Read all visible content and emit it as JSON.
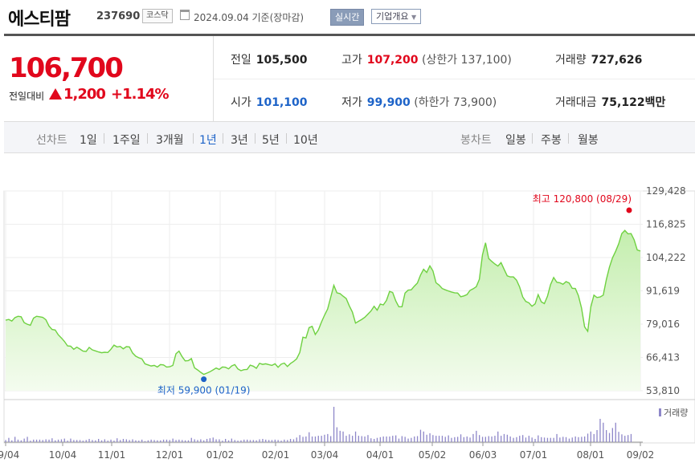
{
  "header": {
    "name": "에스티팜",
    "code": "237690",
    "market": "코스닥",
    "as_of": "2024.09.04 기준(장마감)",
    "realtime_label": "실시간",
    "company_overview_label": "기업개요"
  },
  "quote": {
    "price": "106,700",
    "change_label": "전일대비",
    "change": "1,200",
    "change_pct": "+1.14%"
  },
  "summary": {
    "prev_close_label": "전일",
    "prev_close": "105,500",
    "high_label": "고가",
    "high": "107,200",
    "upper_limit": "(상한가 137,100)",
    "volume_label": "거래량",
    "volume": "727,626",
    "open_label": "시가",
    "open": "101,100",
    "low_label": "저가",
    "low": "99,900",
    "lower_limit": "(하한가 73,900)",
    "trade_value_label": "거래대금",
    "trade_value": "75,122",
    "trade_value_unit": "백만"
  },
  "periods": {
    "line_label": "선차트",
    "line_items": [
      "1일",
      "1주일",
      "3개월",
      "1년",
      "3년",
      "5년",
      "10년"
    ],
    "selected": "1년",
    "candle_label": "봉차트",
    "candle_items": [
      "일봉",
      "주봉",
      "월봉"
    ]
  },
  "colors": {
    "up": "#e1071c",
    "down": "#1d63c8",
    "line": "#6fd141",
    "fill": "#d9f5c9",
    "volume": "#8e87c9"
  },
  "chart_data": {
    "type": "area",
    "x_tick_labels": [
      "09/04",
      "10/04",
      "11/01",
      "12/01",
      "01/02",
      "02/01",
      "03/04",
      "04/01",
      "05/02",
      "06/03",
      "07/01",
      "08/01",
      "09/02"
    ],
    "y_tick_labels": [
      "129,428",
      "116,825",
      "104,222",
      "91,619",
      "79,016",
      "66,413",
      "53,810"
    ],
    "ylim": [
      53810,
      129428
    ],
    "grid": true,
    "max_label": "최고 120,800 (08/29)",
    "min_label": "최저 59,900 (01/19)",
    "volume_legend": "거래량",
    "series": [
      {
        "name": "종가",
        "values": [
          80500,
          80800,
          80200,
          81500,
          82000,
          81800,
          79600,
          79000,
          78600,
          81300,
          82000,
          81800,
          81600,
          80700,
          78300,
          77000,
          76800,
          75000,
          73800,
          72500,
          70800,
          70700,
          69500,
          70300,
          69600,
          68800,
          68700,
          70200,
          69300,
          68900,
          68500,
          68200,
          68400,
          68300,
          69500,
          71100,
          70400,
          70600,
          69700,
          70500,
          70400,
          68100,
          66900,
          66300,
          65900,
          64000,
          63600,
          63200,
          63400,
          62800,
          63700,
          63600,
          62800,
          62900,
          63400,
          67800,
          68800,
          66700,
          65100,
          65200,
          66000,
          62500,
          61700,
          60800,
          60000,
          60500,
          61000,
          61700,
          62400,
          61900,
          62800,
          62700,
          62100,
          63200,
          63700,
          62100,
          61400,
          61800,
          61900,
          63500,
          63100,
          62300,
          64200,
          63800,
          64000,
          63700,
          63400,
          64000,
          62700,
          63900,
          64300,
          63000,
          64100,
          64900,
          65900,
          68300,
          74100,
          73800,
          77700,
          78200,
          75100,
          76800,
          79800,
          82400,
          84800,
          89200,
          93700,
          90900,
          90600,
          89600,
          88700,
          85900,
          83600,
          79400,
          80100,
          80800,
          81600,
          82800,
          84000,
          85800,
          84300,
          86600,
          86300,
          88000,
          91400,
          91000,
          87800,
          85600,
          85600,
          90800,
          91900,
          92000,
          93400,
          94600,
          97600,
          99800,
          98600,
          101100,
          99200,
          94700,
          93800,
          92500,
          92000,
          91600,
          91200,
          90900,
          90800,
          89400,
          89700,
          90200,
          91800,
          92400,
          93200,
          96000,
          105300,
          109800,
          103900,
          102800,
          101800,
          101000,
          102300,
          99800,
          97300,
          96900,
          96900,
          95700,
          93100,
          89300,
          87600,
          87100,
          85800,
          86700,
          90200,
          87500,
          86800,
          89600,
          94000,
          96700,
          94900,
          94700,
          94100,
          95100,
          94600,
          92600,
          92500,
          89800,
          85100,
          78000,
          76300,
          85500,
          90000,
          89100,
          89300,
          90000,
          95800,
          100600,
          104100,
          106600,
          109400,
          113300,
          114500,
          113200,
          113300,
          110900,
          107100,
          106700
        ]
      },
      {
        "name": "거래량",
        "values": [
          0.06,
          0.12,
          0.05,
          0.15,
          0.07,
          0.05,
          0.1,
          0.15,
          0.04,
          0.07,
          0.07,
          0.07,
          0.06,
          0.08,
          0.07,
          0.11,
          0.05,
          0.07,
          0.08,
          0.1,
          0.04,
          0.1,
          0.06,
          0.06,
          0.06,
          0.04,
          0.06,
          0.09,
          0.06,
          0.05,
          0.09,
          0.05,
          0.08,
          0.04,
          0.07,
          0.04,
          0.11,
          0.06,
          0.09,
          0.08,
          0.06,
          0.08,
          0.05,
          0.04,
          0.07,
          0.03,
          0.05,
          0.07,
          0.06,
          0.05,
          0.05,
          0.07,
          0.07,
          0.06,
          0.1,
          0.06,
          0.07,
          0.06,
          0.05,
          0.05,
          0.12,
          0.08,
          0.06,
          0.08,
          0.05,
          0.09,
          0.11,
          0.13,
          0.08,
          0.08,
          0.04,
          0.09,
          0.05,
          0.1,
          0.06,
          0.04,
          0.05,
          0.07,
          0.07,
          0.06,
          0.06,
          0.05,
          0.08,
          0.09,
          0.07,
          0.06,
          0.06,
          0.07,
          0.06,
          0.04,
          0.07,
          0.06,
          0.09,
          0.08,
          0.13,
          0.2,
          0.15,
          0.16,
          0.28,
          0.16,
          0.16,
          0.18,
          0.18,
          0.21,
          0.23,
          0.17,
          1.0,
          0.42,
          0.32,
          0.3,
          0.18,
          0.22,
          0.18,
          0.3,
          0.18,
          0.17,
          0.16,
          0.2,
          0.11,
          0.09,
          0.12,
          0.14,
          0.16,
          0.16,
          0.16,
          0.18,
          0.19,
          0.1,
          0.17,
          0.15,
          0.1,
          0.12,
          0.16,
          0.17,
          0.35,
          0.3,
          0.21,
          0.25,
          0.2,
          0.18,
          0.18,
          0.18,
          0.15,
          0.19,
          0.12,
          0.14,
          0.15,
          0.22,
          0.14,
          0.16,
          0.13,
          0.23,
          0.32,
          0.2,
          0.15,
          0.15,
          0.17,
          0.16,
          0.18,
          0.3,
          0.18,
          0.23,
          0.21,
          0.16,
          0.12,
          0.14,
          0.18,
          0.2,
          0.13,
          0.18,
          0.13,
          0.09,
          0.19,
          0.14,
          0.13,
          0.12,
          0.12,
          0.12,
          0.23,
          0.13,
          0.15,
          0.14,
          0.1,
          0.13,
          0.16,
          0.14,
          0.15,
          0.16,
          0.24,
          0.3,
          0.23,
          0.34,
          0.66,
          0.55,
          0.34,
          0.26,
          0.4,
          0.55,
          0.29,
          0.22,
          0.18,
          0.2,
          0.23
        ]
      }
    ]
  }
}
